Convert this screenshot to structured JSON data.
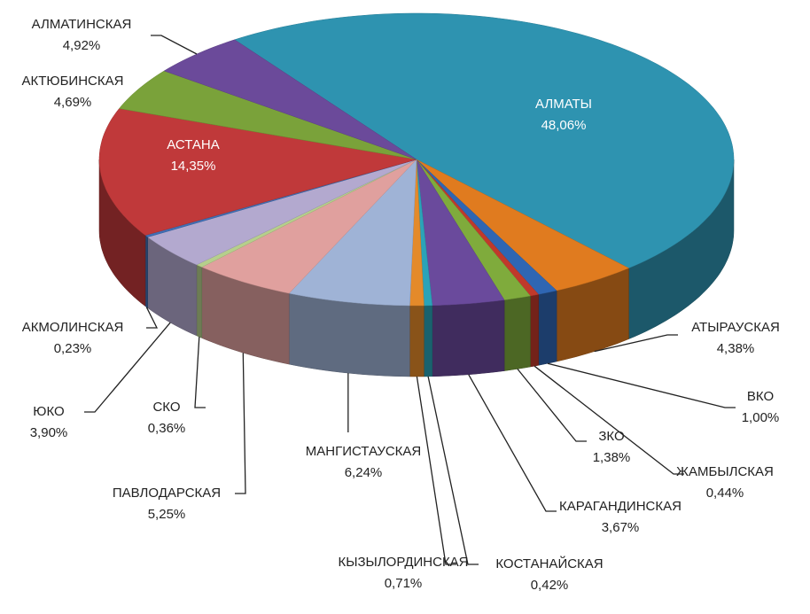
{
  "chart_data": {
    "type": "pie3d",
    "categories": [
      "АЛМАТЫ",
      "АТЫРАУСКАЯ",
      "ВКО",
      "ЖАМБЫЛСКАЯ",
      "ЗКО",
      "КАРАГАНДИНСКАЯ",
      "КОСТАНАЙСКАЯ",
      "КЫЗЫЛОРДИНСКАЯ",
      "МАНГИСТАУСКАЯ",
      "ПАВЛОДАРСКАЯ",
      "СКО",
      "ЮКО",
      "АКМОЛИНСКАЯ",
      "АСТАНА",
      "АКТЮБИНСКАЯ",
      "АЛМАТИНСКАЯ"
    ],
    "values": [
      48.06,
      4.38,
      1.0,
      0.44,
      1.38,
      3.67,
      0.42,
      0.71,
      6.24,
      5.25,
      0.36,
      3.9,
      0.23,
      14.35,
      4.69,
      4.92
    ],
    "value_labels": [
      "48,06%",
      "4,38%",
      "1,00%",
      "0,44%",
      "1,38%",
      "3,67%",
      "0,42%",
      "0,71%",
      "6,24%",
      "5,25%",
      "0,36%",
      "3,90%",
      "0,23%",
      "14,35%",
      "4,69%",
      "4,92%"
    ],
    "colors": [
      "#2e93b0",
      "#e07b1f",
      "#2f66b3",
      "#c0392b",
      "#7fab3c",
      "#6a4a9c",
      "#2ba3b8",
      "#e48a2a",
      "#9fb3d6",
      "#e0a09e",
      "#b6cf8c",
      "#b3a9cf",
      "#3f6fb5",
      "#c0393a",
      "#7aa23a",
      "#6b4a9a"
    ]
  }
}
